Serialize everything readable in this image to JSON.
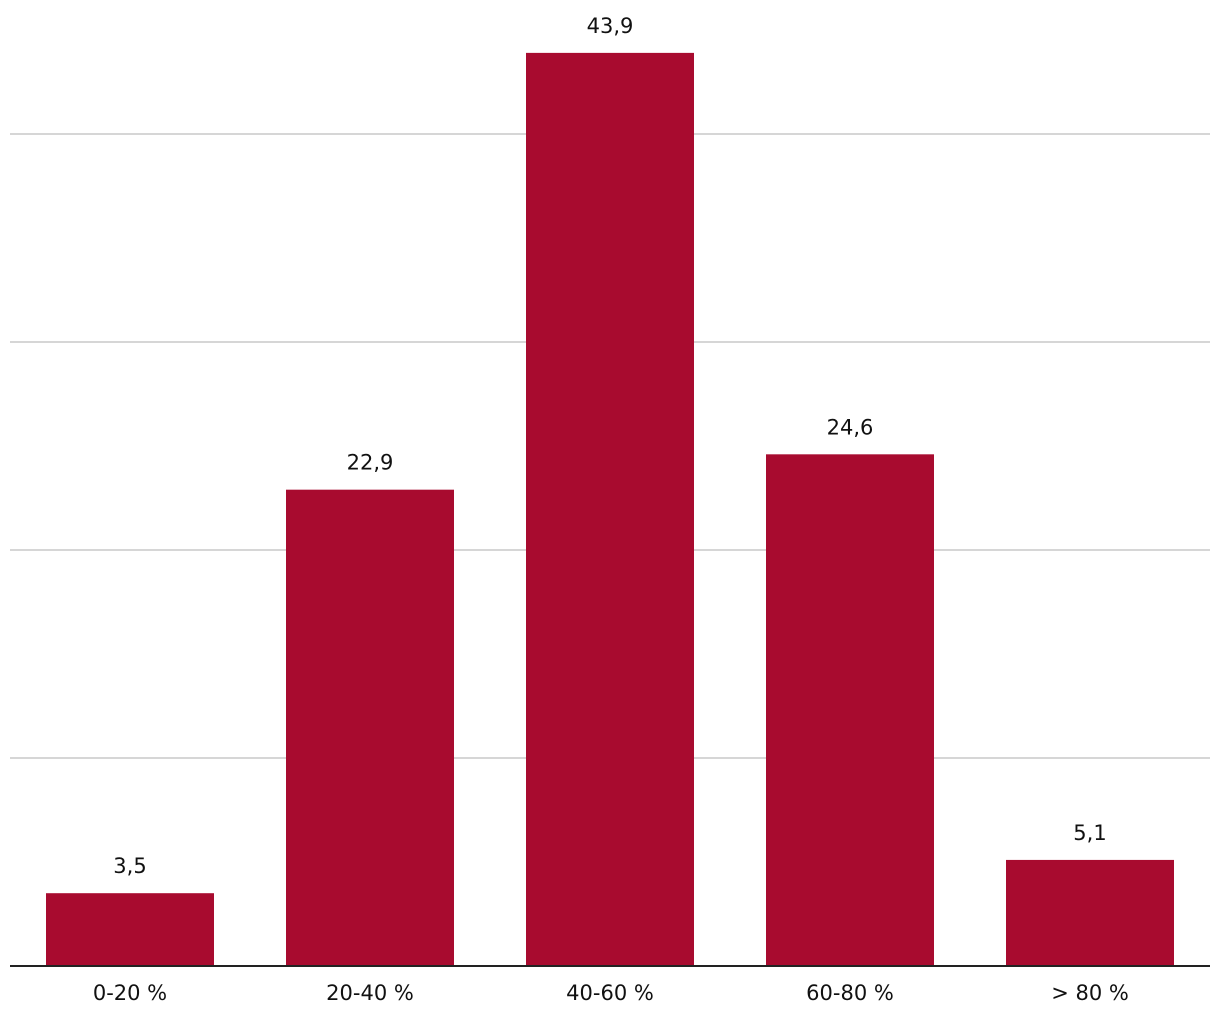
{
  "chart_data": {
    "type": "bar",
    "categories": [
      "0-20 %",
      "20-40 %",
      "40-60 %",
      "60-80 %",
      "> 80 %"
    ],
    "values": [
      3.5,
      22.9,
      43.9,
      24.6,
      5.1
    ],
    "value_labels": [
      "3,5",
      "22,9",
      "43,9",
      "24,6",
      "5,1"
    ],
    "color": "#a80b2f",
    "ylim": [
      0,
      45
    ],
    "yticks": [
      0,
      10,
      20,
      30,
      40
    ],
    "grid": true
  }
}
